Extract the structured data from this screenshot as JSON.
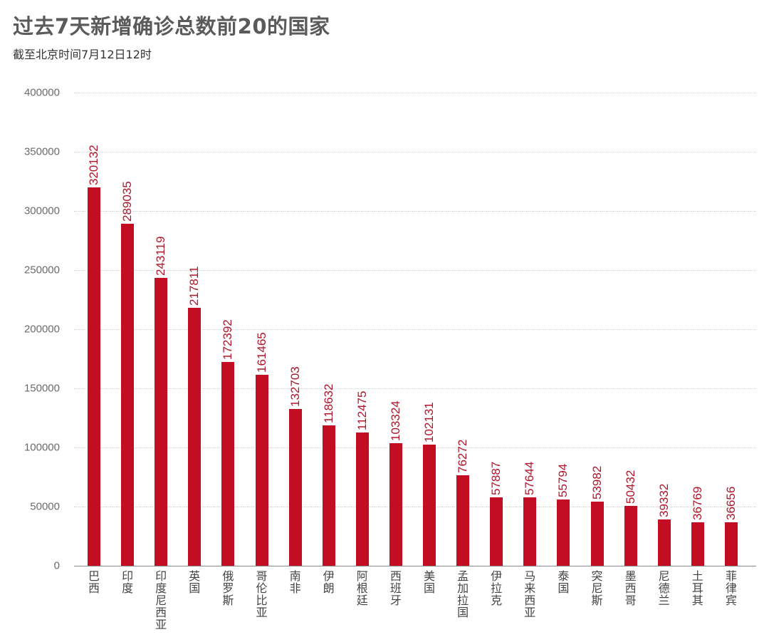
{
  "header": {
    "title": "过去7天新增确诊总数前20的国家",
    "subtitle": "截至北京时间7月12日12时"
  },
  "colors": {
    "bar": "#c30d23",
    "value_label": "#b0162b",
    "title": "#5a5a5a",
    "grid": "#d0d0d0"
  },
  "chart_data": {
    "type": "bar",
    "title": "过去7天新增确诊总数前20的国家",
    "subtitle": "截至北京时间7月12日12时",
    "xlabel": "",
    "ylabel": "",
    "ylim": [
      0,
      400000
    ],
    "yticks": [
      0,
      50000,
      100000,
      150000,
      200000,
      250000,
      300000,
      350000,
      400000
    ],
    "ytick_labels": [
      "0",
      "50000",
      "100000",
      "150000",
      "200000",
      "250000",
      "300000",
      "350000",
      "400000"
    ],
    "grid": true,
    "legend": null,
    "data_labels": "rotated vertical above bars",
    "categories": [
      "巴西",
      "印度",
      "印度尼西亚",
      "英国",
      "俄罗斯",
      "哥伦比亚",
      "南非",
      "伊朗",
      "阿根廷",
      "西班牙",
      "美国",
      "孟加拉国",
      "伊拉克",
      "马来西亚",
      "泰国",
      "突尼斯",
      "墨西哥",
      "尼德兰",
      "土耳其",
      "菲律宾"
    ],
    "values": [
      320132,
      289035,
      243119,
      217811,
      172392,
      161465,
      132703,
      118632,
      112475,
      103324,
      102131,
      76272,
      57887,
      57644,
      55794,
      53982,
      50432,
      39332,
      36769,
      36656
    ],
    "value_labels": [
      "320132",
      "289035",
      "243119",
      "217811",
      "172392",
      "161465",
      "132703",
      "118632",
      "112475",
      "103324",
      "102131",
      "76272",
      "57887",
      "57644",
      "55794",
      "53982",
      "50432",
      "39332",
      "36769",
      "36656"
    ]
  }
}
